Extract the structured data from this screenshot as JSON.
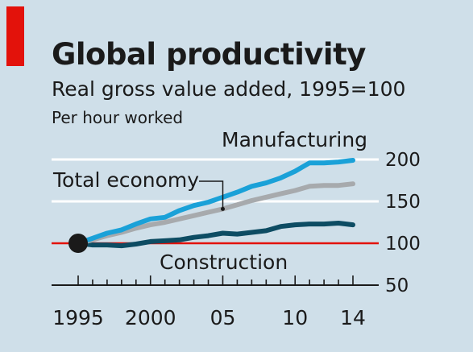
{
  "chart_data": {
    "type": "line",
    "title": "Global productivity",
    "subtitle": "Real gross value added, 1995=100",
    "unit_note": "Per hour worked",
    "x": [
      1995,
      1996,
      1997,
      1998,
      1999,
      2000,
      2001,
      2002,
      2003,
      2004,
      2005,
      2006,
      2007,
      2008,
      2009,
      2010,
      2011,
      2012,
      2013,
      2014
    ],
    "x_tick_labels": [
      {
        "value": 1995,
        "label": "1995"
      },
      {
        "value": 2000,
        "label": "2000"
      },
      {
        "value": 2005,
        "label": "05"
      },
      {
        "value": 2010,
        "label": "10"
      },
      {
        "value": 2014,
        "label": "14"
      }
    ],
    "y_ticks": [
      50,
      100,
      150,
      200
    ],
    "ylim": [
      50,
      210
    ],
    "xlim": [
      1994.5,
      2014.5
    ],
    "baseline": 100,
    "grid": true,
    "base_point": {
      "x": 1995,
      "y": 100
    },
    "series": [
      {
        "name": "Manufacturing",
        "color": "#1aa1d8",
        "values": [
          100,
          106,
          112,
          116,
          123,
          129,
          131,
          139,
          145,
          149,
          155,
          161,
          168,
          172,
          178,
          186,
          196,
          196,
          197,
          199
        ]
      },
      {
        "name": "Total economy",
        "color": "#a7aaad",
        "values": [
          100,
          104,
          109,
          113,
          118,
          122,
          125,
          129,
          133,
          137,
          141,
          146,
          151,
          155,
          159,
          163,
          168,
          169,
          169,
          171
        ]
      },
      {
        "name": "Construction",
        "color": "#0d4c63",
        "values": [
          100,
          98,
          98,
          97,
          99,
          102,
          103,
          104,
          107,
          109,
          112,
          111,
          113,
          115,
          120,
          122,
          123,
          123,
          124,
          122
        ]
      }
    ]
  }
}
